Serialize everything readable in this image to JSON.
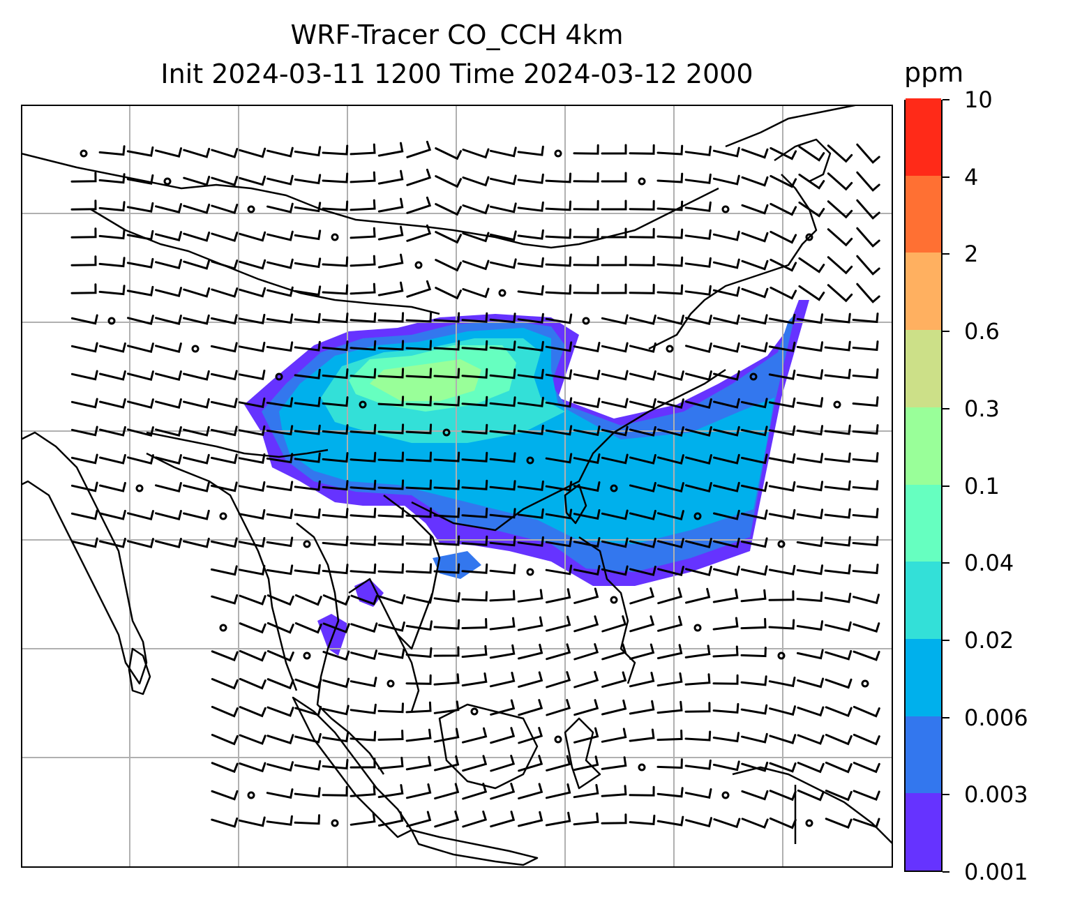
{
  "title": {
    "line1": "WRF-Tracer CO_CCH 4km",
    "line2": "Init 2024-03-11 1200 Time 2024-03-12 2000"
  },
  "colorbar": {
    "unit": "ppm",
    "ticks": [
      "0.001",
      "0.003",
      "0.006",
      "0.02",
      "0.04",
      "0.1",
      "0.3",
      "0.6",
      "2",
      "4",
      "10"
    ],
    "colors": [
      "#6633ff",
      "#3377ee",
      "#00b0ec",
      "#33e0d8",
      "#66ffc0",
      "#99ff99",
      "#cce088",
      "#ffb060",
      "#ff7033",
      "#ff2a18"
    ]
  },
  "map": {
    "gridline_color": "#b0b0b0",
    "coastline_color": "#000000",
    "plume_colors": {
      "outer": "#6633ff",
      "low": "#3377ee",
      "mid": "#00b0ec",
      "cyan": "#33e0d8",
      "high": "#66ffc0",
      "peak": "#99ff99"
    },
    "wind_barbs_present": true
  }
}
